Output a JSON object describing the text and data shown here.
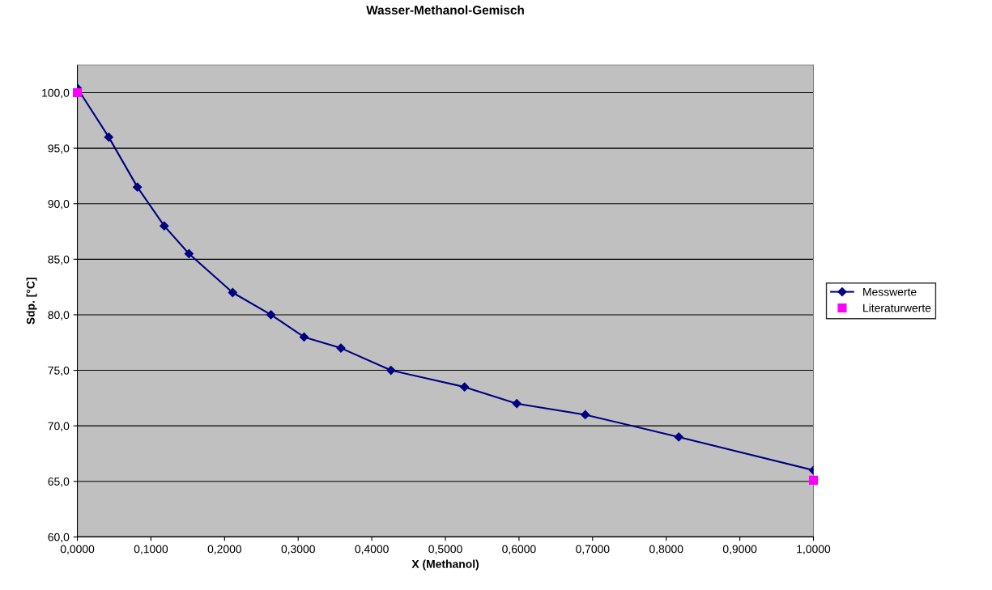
{
  "chart_data": {
    "type": "line",
    "title": "Wasser-Methanol-Gemisch",
    "xlabel": "X (Methanol)",
    "ylabel": "Sdp. [°C]",
    "series": [
      {
        "name": "Messwerte",
        "color": "#000080",
        "marker": "diamond",
        "x": [
          0.0,
          0.0426,
          0.0815,
          0.118,
          0.1516,
          0.211,
          0.263,
          0.308,
          0.358,
          0.426,
          0.526,
          0.597,
          0.69,
          0.817,
          1.0
        ],
        "values": [
          100.4,
          96.0,
          91.5,
          88.0,
          85.5,
          82.0,
          80.0,
          78.0,
          77.0,
          75.0,
          73.5,
          72.0,
          71.0,
          69.0,
          66.0
        ]
      },
      {
        "name": "Literaturwerte",
        "color": "#ff00ff",
        "type": "scatter",
        "marker": "square",
        "x": [
          0.0,
          1.0
        ],
        "values": [
          100.0,
          65.1
        ]
      }
    ],
    "xlim": [
      0,
      1
    ],
    "xticks": [
      {
        "value": 0,
        "label": "0,0000"
      },
      {
        "value": 0.1,
        "label": "0,1000"
      },
      {
        "value": 0.2,
        "label": "0,2000"
      },
      {
        "value": 0.3,
        "label": "0,3000"
      },
      {
        "value": 0.4,
        "label": "0,4000"
      },
      {
        "value": 0.5,
        "label": "0,5000"
      },
      {
        "value": 0.6,
        "label": "0,6000"
      },
      {
        "value": 0.7,
        "label": "0,7000"
      },
      {
        "value": 0.8,
        "label": "0,8000"
      },
      {
        "value": 0.9,
        "label": "0,9000"
      },
      {
        "value": 1,
        "label": "1,0000"
      }
    ],
    "ylim": [
      60,
      102.5
    ],
    "yticks": [
      {
        "value": 60,
        "label": "60,0"
      },
      {
        "value": 65,
        "label": "65,0"
      },
      {
        "value": 70,
        "label": "70,0"
      },
      {
        "value": 75,
        "label": "75,0"
      },
      {
        "value": 80,
        "label": "80,0"
      },
      {
        "value": 85,
        "label": "85,0"
      },
      {
        "value": 90,
        "label": "90,0"
      },
      {
        "value": 95,
        "label": "95,0"
      },
      {
        "value": 100,
        "label": "100,0"
      }
    ],
    "grid": "y",
    "legend": "right"
  }
}
